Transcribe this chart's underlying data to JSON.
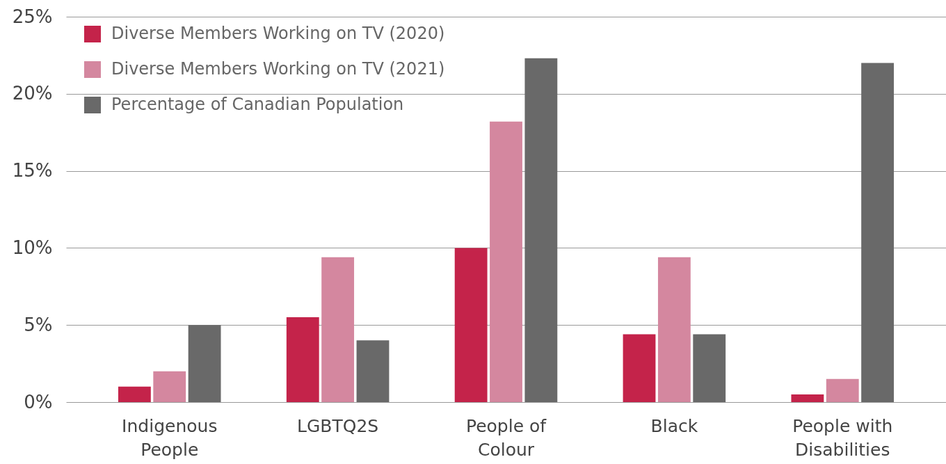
{
  "chart_data": {
    "type": "bar",
    "categories": [
      "Indigenous People",
      "LGBTQ2S",
      "People of Colour",
      "Black",
      "People with Disabilities"
    ],
    "series": [
      {
        "name": "Diverse Members Working on TV (2020)",
        "color": "#c4234a",
        "values": [
          1.0,
          5.5,
          10.0,
          4.4,
          0.5
        ]
      },
      {
        "name": "Diverse Members Working on TV (2021)",
        "color": "#d4879f",
        "values": [
          2.0,
          9.4,
          18.2,
          9.4,
          1.5
        ]
      },
      {
        "name": "Percentage of Canadian Population",
        "color": "#696969",
        "values": [
          5.0,
          4.0,
          22.3,
          4.4,
          22.0
        ]
      }
    ],
    "ylim": [
      0,
      25
    ],
    "yticks": [
      {
        "value": 0,
        "label": "0%"
      },
      {
        "value": 5,
        "label": "5%"
      },
      {
        "value": 10,
        "label": "10%"
      },
      {
        "value": 15,
        "label": "15%"
      },
      {
        "value": 20,
        "label": "20%"
      },
      {
        "value": 25,
        "label": "25%"
      }
    ],
    "grid": "y",
    "legend": "top left"
  }
}
